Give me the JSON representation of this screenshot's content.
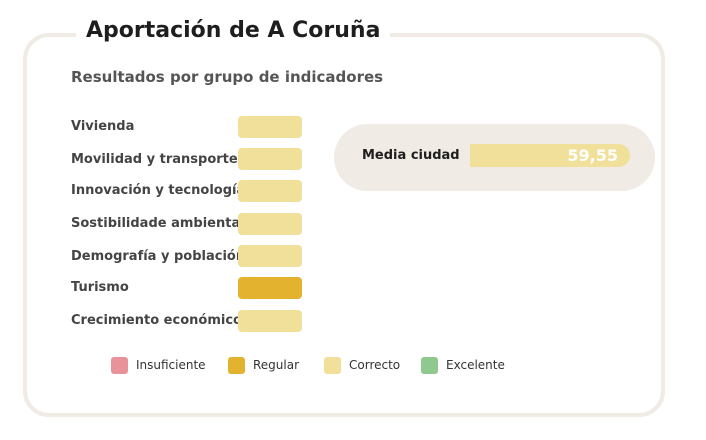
{
  "title": "Aportación de A Coruña",
  "subtitle": "Resultados por grupo de indicadores",
  "indicators": [
    {
      "label": "Vivienda",
      "level": "Correcto"
    },
    {
      "label": "Movilidad y transporte",
      "level": "Correcto"
    },
    {
      "label": "Innovación y tecnología",
      "level": "Correcto"
    },
    {
      "label": "Sostibilidade ambiental",
      "level": "Correcto"
    },
    {
      "label": "Demografía y población",
      "level": "Correcto"
    },
    {
      "label": "Turismo",
      "level": "Regular"
    },
    {
      "label": "Crecimiento económico",
      "level": "Correcto"
    }
  ],
  "average": {
    "label": "Media ciudad",
    "value": "59,55"
  },
  "legend": [
    {
      "label": "Insuficiente",
      "color": "#e8939a"
    },
    {
      "label": "Regular",
      "color": "#e3b22e"
    },
    {
      "label": "Correcto",
      "color": "#f0e09a"
    },
    {
      "label": "Excelente",
      "color": "#8fc98f"
    }
  ],
  "colors": {
    "average_bar": "#f0e09a"
  }
}
